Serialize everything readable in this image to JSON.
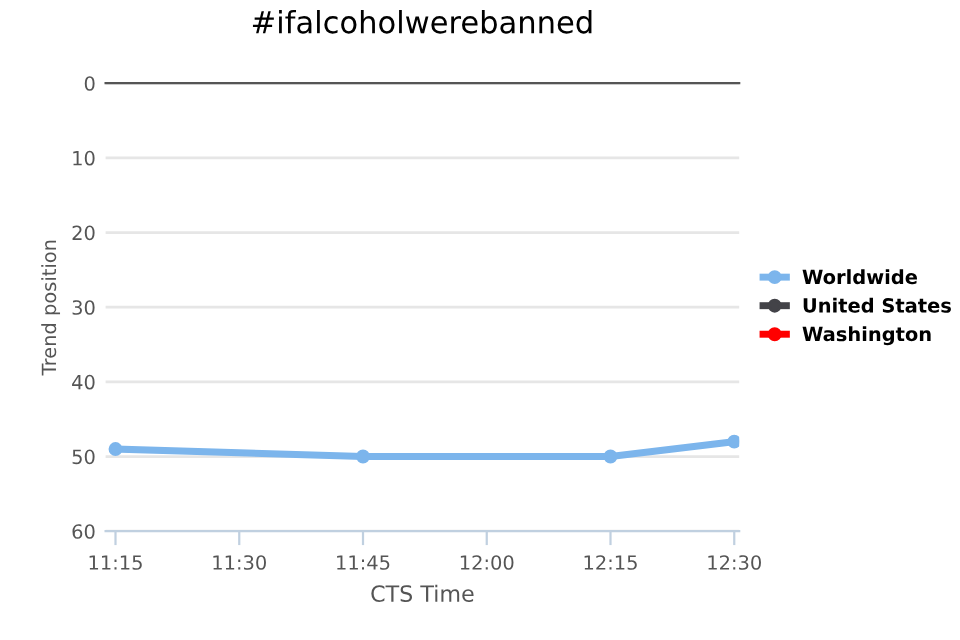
{
  "chart_data": {
    "type": "line",
    "title": "#ifalcoholwerebanned",
    "xlabel": "CTS Time",
    "ylabel": "Trend position",
    "x": [
      11.25,
      11.75,
      12.25,
      12.5
    ],
    "series": [
      {
        "name": "Worldwide",
        "color": "#7cb5ec",
        "values": [
          49,
          50,
          50,
          48
        ]
      },
      {
        "name": "United States",
        "color": "#434348",
        "values": [
          null,
          null,
          null,
          null
        ]
      },
      {
        "name": "Washington",
        "color": "#ff0000",
        "values": [
          null,
          null,
          null,
          null
        ]
      }
    ],
    "xlim": [
      11.23,
      12.51
    ],
    "ylim": [
      60,
      0
    ],
    "xticks": [
      {
        "value": 11.25,
        "label": "11:15"
      },
      {
        "value": 11.5,
        "label": "11:30"
      },
      {
        "value": 11.75,
        "label": "11:45"
      },
      {
        "value": 12.0,
        "label": "12:00"
      },
      {
        "value": 12.25,
        "label": "12:15"
      },
      {
        "value": 12.5,
        "label": "12:30"
      }
    ],
    "yticks": [
      0,
      10,
      20,
      30,
      40,
      50,
      60
    ],
    "grid": "y",
    "legend": "right",
    "marker": "circle",
    "line_style": "solid"
  }
}
